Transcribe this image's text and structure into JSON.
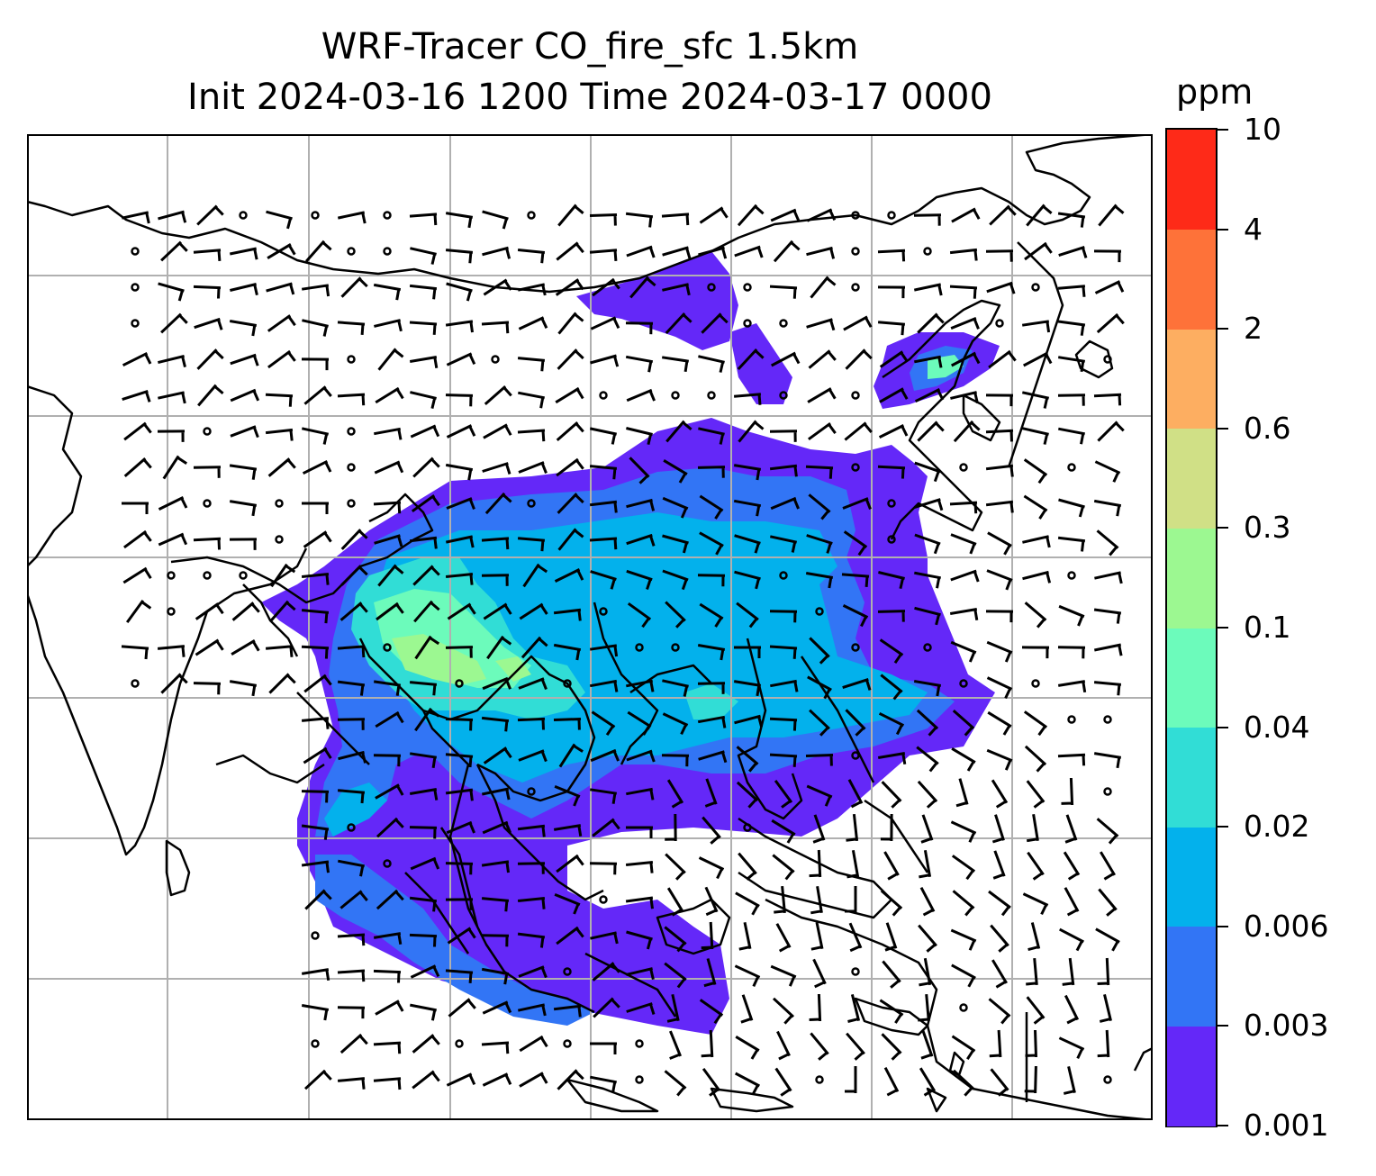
{
  "title": {
    "line1": "WRF-Tracer CO_fire_sfc 1.5km",
    "line2": "Init 2024-03-16 1200 Time 2024-03-17 0000"
  },
  "colorbar": {
    "label": "ppm",
    "ticks": [
      "0.001",
      "0.003",
      "0.006",
      "0.02",
      "0.04",
      "0.1",
      "0.3",
      "0.6",
      "2",
      "4",
      "10"
    ],
    "colors": [
      "#6428f8",
      "#3275f5",
      "#03b1ec",
      "#31ddd6",
      "#6cfbbb",
      "#9cf891",
      "#d0e086",
      "#fdae61",
      "#fe7239",
      "#fe2a18"
    ]
  },
  "colors": {
    "gridline": "#b0b0b0",
    "coastline": "#000000",
    "barb": "#000000"
  }
}
